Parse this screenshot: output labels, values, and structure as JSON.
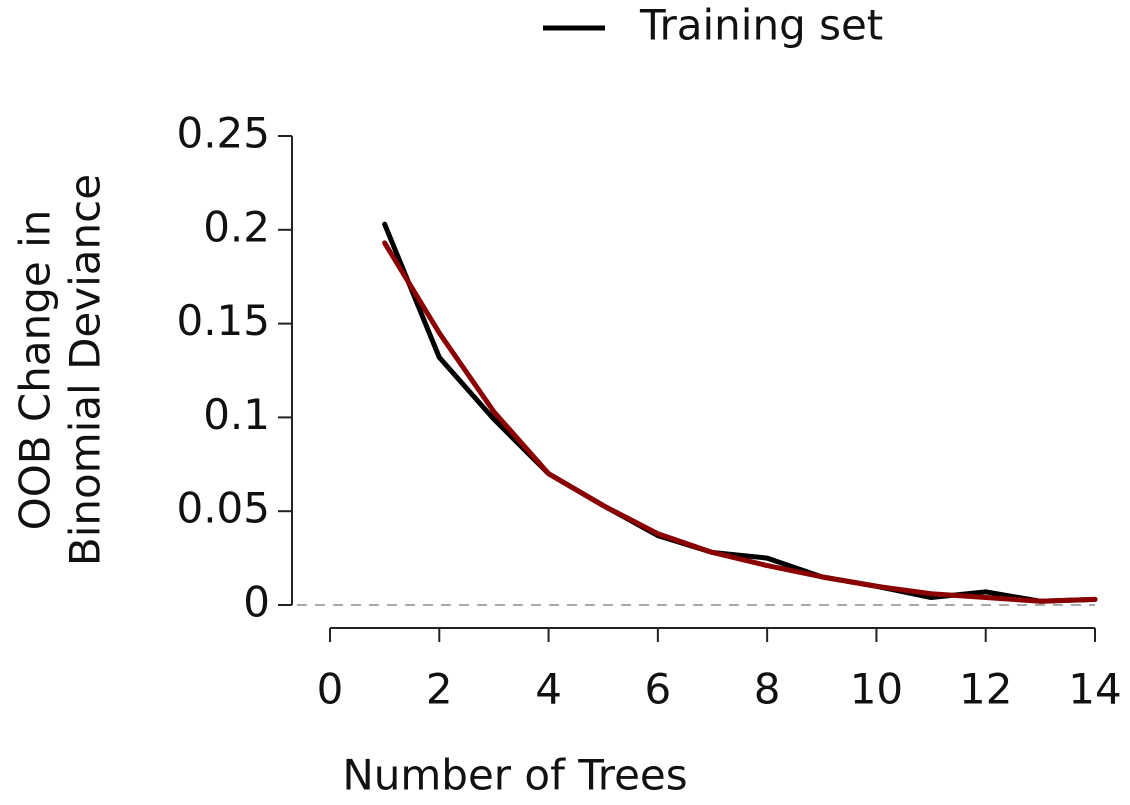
{
  "chart_data": {
    "type": "line",
    "xlabel": "Number of Trees",
    "ylabel": [
      "OOB Change in",
      "Binomial Deviance"
    ],
    "x": [
      1,
      2,
      3,
      4,
      5,
      6,
      7,
      8,
      9,
      10,
      11,
      12,
      13,
      14
    ],
    "series": [
      {
        "name": "Training set",
        "color": "#000000",
        "values": [
          0.203,
          0.132,
          0.099,
          0.07,
          0.053,
          0.037,
          0.028,
          0.025,
          0.015,
          0.01,
          0.004,
          0.007,
          0.002,
          0.003
        ]
      },
      {
        "color": "#8b0000",
        "values": [
          0.193,
          0.145,
          0.103,
          0.07,
          0.053,
          0.038,
          0.028,
          0.021,
          0.015,
          0.01,
          0.006,
          0.004,
          0.002,
          0.003
        ]
      }
    ],
    "xlim": [
      0,
      14
    ],
    "xticks": [
      0,
      2,
      4,
      6,
      8,
      10,
      12,
      14
    ],
    "ylim": [
      0,
      0.25
    ],
    "yticks": [
      0,
      0.05,
      0.1,
      0.15,
      0.2,
      0.25
    ],
    "reference_line": {
      "value": 0,
      "color": "#aaaaaa"
    },
    "legend": "top"
  }
}
